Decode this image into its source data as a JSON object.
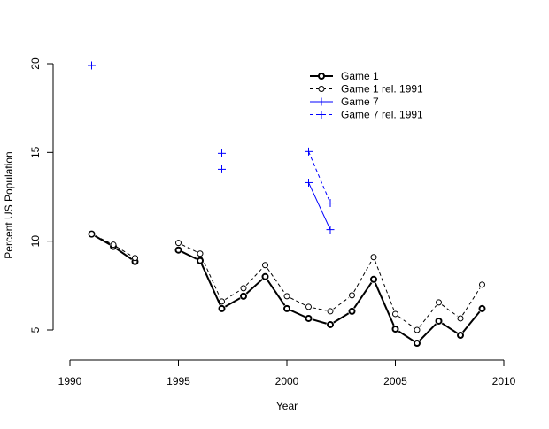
{
  "chart_data": {
    "type": "line",
    "xlabel": "Year",
    "ylabel": "Percent US Population",
    "xlim": [
      1990,
      2010
    ],
    "ylim": [
      5,
      20
    ],
    "x_ticks": [
      1990,
      1995,
      2000,
      2005,
      2010
    ],
    "y_ticks": [
      5,
      10,
      15,
      20
    ],
    "grid": false,
    "legend_position": "top-right",
    "series": [
      {
        "name": "Game 1",
        "color": "#000000",
        "line": "solid",
        "marker": "circle",
        "thick": true,
        "x": [
          1991,
          1992,
          1993,
          null,
          1995,
          1996,
          1997,
          1998,
          1999,
          2000,
          2001,
          2002,
          2003,
          2004,
          2005,
          2006,
          2007,
          2008,
          2009
        ],
        "y": [
          10.4,
          9.7,
          8.85,
          null,
          9.5,
          8.9,
          6.2,
          6.9,
          8.0,
          6.2,
          5.65,
          5.3,
          6.05,
          7.85,
          5.05,
          4.25,
          5.5,
          4.7,
          6.2
        ]
      },
      {
        "name": "Game 1 rel. 1991",
        "color": "#000000",
        "line": "dashed",
        "marker": "circle",
        "thick": false,
        "x": [
          1991,
          1992,
          1993,
          null,
          1995,
          1996,
          1997,
          1998,
          1999,
          2000,
          2001,
          2002,
          2003,
          2004,
          2005,
          2006,
          2007,
          2008,
          2009
        ],
        "y": [
          10.4,
          9.8,
          9.05,
          null,
          9.9,
          9.3,
          6.6,
          7.35,
          8.65,
          6.9,
          6.3,
          6.05,
          6.95,
          9.1,
          5.9,
          5.0,
          6.55,
          5.65,
          7.55
        ]
      },
      {
        "name": "Game 7",
        "color": "#0000ff",
        "line": "solid",
        "marker": "plus",
        "thick": false,
        "x": [
          1991,
          null,
          1997,
          null,
          2001,
          2002
        ],
        "y": [
          19.9,
          null,
          14.05,
          null,
          13.3,
          10.65
        ]
      },
      {
        "name": "Game 7 rel.  1991",
        "color": "#0000ff",
        "line": "dashed",
        "marker": "plus",
        "thick": false,
        "x": [
          1991,
          null,
          1997,
          null,
          2001,
          2002
        ],
        "y": [
          19.9,
          null,
          14.95,
          null,
          15.05,
          12.15
        ]
      }
    ]
  }
}
